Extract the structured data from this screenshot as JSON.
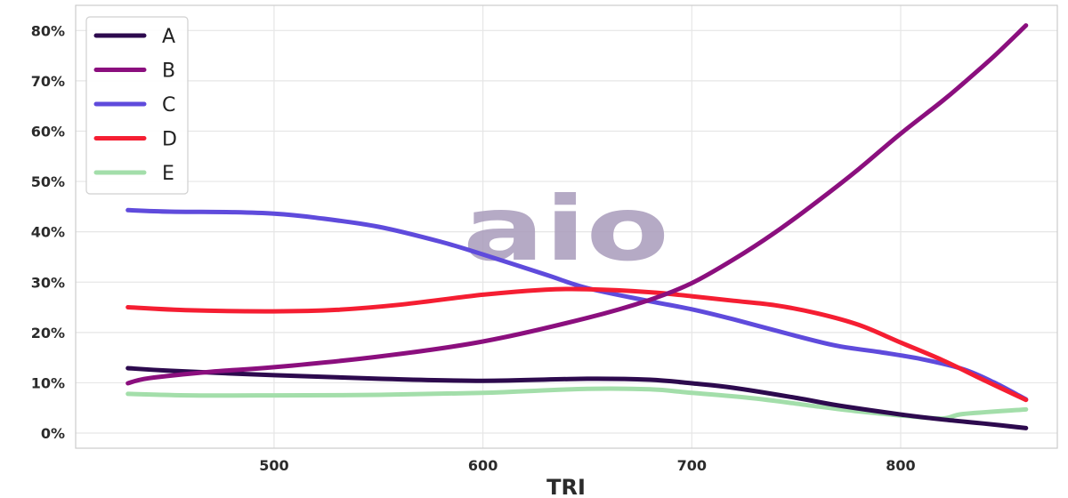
{
  "chart_data": {
    "type": "line",
    "title": "",
    "xlabel": "TRI",
    "ylabel": "",
    "xlim": [
      405,
      875
    ],
    "ylim": [
      -3,
      85
    ],
    "x_ticks": [
      500,
      600,
      700,
      800
    ],
    "y_ticks": [
      0,
      10,
      20,
      30,
      40,
      50,
      60,
      70,
      80
    ],
    "y_tick_format": "percent",
    "grid": true,
    "legend_position": "top-left",
    "watermark": "aio",
    "series": [
      {
        "name": "A",
        "color": "#2d0a4e",
        "points": [
          [
            430,
            12.9
          ],
          [
            450,
            12.4
          ],
          [
            500,
            11.5
          ],
          [
            550,
            10.8
          ],
          [
            600,
            10.4
          ],
          [
            650,
            10.8
          ],
          [
            680,
            10.6
          ],
          [
            700,
            9.9
          ],
          [
            720,
            9.0
          ],
          [
            750,
            7.0
          ],
          [
            770,
            5.5
          ],
          [
            800,
            3.7
          ],
          [
            820,
            2.7
          ],
          [
            840,
            1.9
          ],
          [
            860,
            1.0
          ]
        ]
      },
      {
        "name": "B",
        "color": "#8b0f7e",
        "points": [
          [
            430,
            9.9
          ],
          [
            440,
            10.9
          ],
          [
            470,
            12.2
          ],
          [
            500,
            13.1
          ],
          [
            550,
            15.2
          ],
          [
            600,
            18.2
          ],
          [
            650,
            22.9
          ],
          [
            680,
            26.5
          ],
          [
            700,
            29.8
          ],
          [
            720,
            34.5
          ],
          [
            740,
            39.9
          ],
          [
            760,
            46.0
          ],
          [
            780,
            52.5
          ],
          [
            800,
            59.5
          ],
          [
            820,
            66.0
          ],
          [
            830,
            69.5
          ],
          [
            845,
            75.0
          ],
          [
            860,
            81.0
          ]
        ]
      },
      {
        "name": "C",
        "color": "#5f4bdc",
        "points": [
          [
            430,
            44.3
          ],
          [
            450,
            44.0
          ],
          [
            480,
            43.9
          ],
          [
            500,
            43.6
          ],
          [
            520,
            42.8
          ],
          [
            550,
            41.0
          ],
          [
            580,
            38.0
          ],
          [
            600,
            35.5
          ],
          [
            630,
            31.5
          ],
          [
            650,
            28.8
          ],
          [
            680,
            26.2
          ],
          [
            700,
            24.6
          ],
          [
            720,
            22.6
          ],
          [
            750,
            19.3
          ],
          [
            770,
            17.3
          ],
          [
            790,
            16.1
          ],
          [
            810,
            14.7
          ],
          [
            830,
            12.7
          ],
          [
            845,
            10.0
          ],
          [
            860,
            6.7
          ]
        ]
      },
      {
        "name": "D",
        "color": "#f51e32",
        "points": [
          [
            430,
            25.0
          ],
          [
            460,
            24.4
          ],
          [
            500,
            24.2
          ],
          [
            530,
            24.5
          ],
          [
            560,
            25.5
          ],
          [
            600,
            27.5
          ],
          [
            630,
            28.5
          ],
          [
            650,
            28.6
          ],
          [
            680,
            28.0
          ],
          [
            700,
            27.2
          ],
          [
            720,
            26.3
          ],
          [
            740,
            25.4
          ],
          [
            760,
            23.8
          ],
          [
            780,
            21.5
          ],
          [
            800,
            18.0
          ],
          [
            820,
            14.5
          ],
          [
            840,
            10.5
          ],
          [
            860,
            6.6
          ]
        ]
      },
      {
        "name": "E",
        "color": "#a3deaa",
        "points": [
          [
            430,
            7.8
          ],
          [
            460,
            7.5
          ],
          [
            500,
            7.5
          ],
          [
            550,
            7.6
          ],
          [
            600,
            8.0
          ],
          [
            650,
            8.8
          ],
          [
            680,
            8.7
          ],
          [
            700,
            8.0
          ],
          [
            730,
            6.9
          ],
          [
            760,
            5.3
          ],
          [
            780,
            4.3
          ],
          [
            800,
            3.5
          ],
          [
            820,
            2.9
          ],
          [
            830,
            3.8
          ],
          [
            860,
            4.7
          ]
        ]
      }
    ]
  }
}
